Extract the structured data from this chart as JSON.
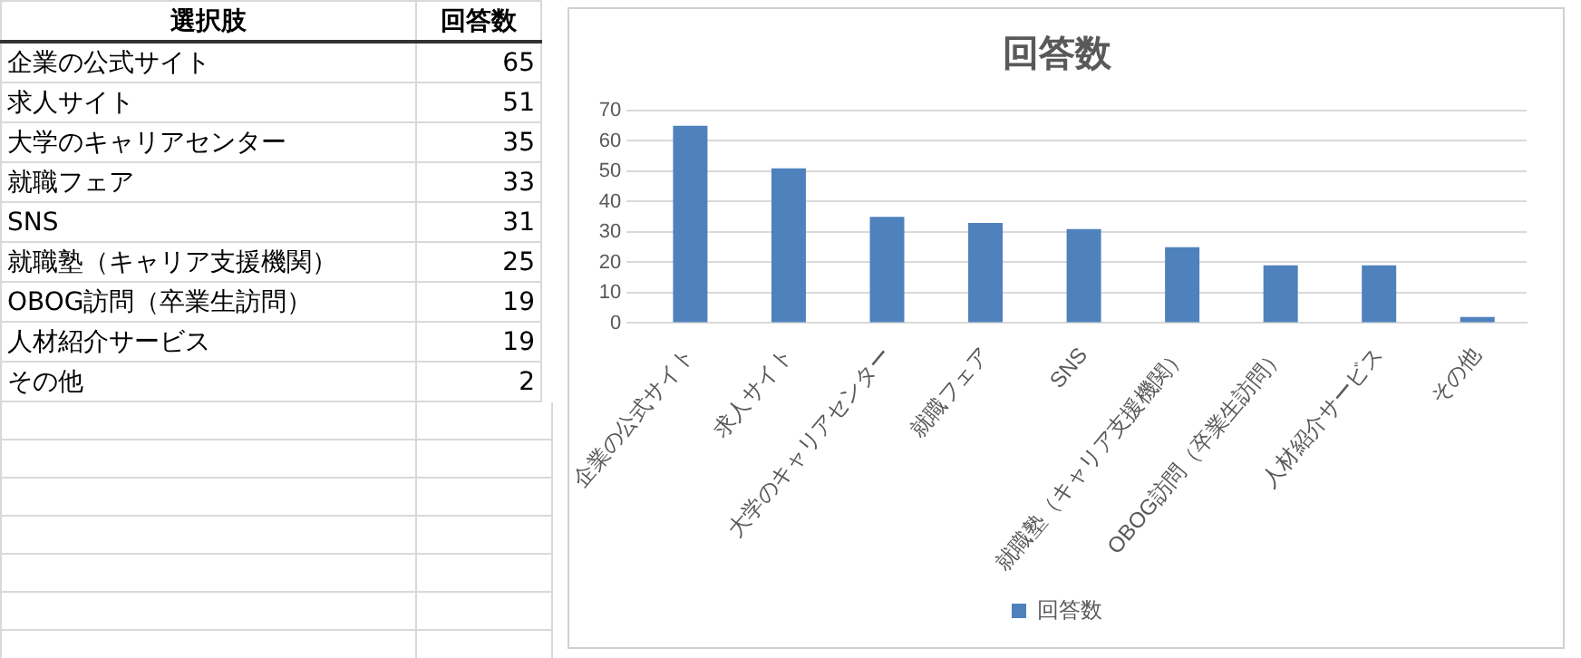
{
  "chart_data": [
    {
      "type": "other",
      "annotations": [
        "選択肢",
        "回答数",
        "企業の公式サイト",
        "65",
        "求人サイト",
        "51",
        "大学のキャリアセンター",
        "35",
        "就職フェア",
        "33",
        "SNS",
        "31",
        "就職塾（キャリア支援機関）",
        "25",
        "OBOG訪問（卒業生訪問）",
        "19",
        "人材紹介サービス",
        "19",
        "その他",
        "2"
      ]
    },
    {
      "type": "bar",
      "title": "回答数",
      "categories": [
        "企業の公式サイト",
        "求人サイト",
        "大学のキャリアセンター",
        "就職フェア",
        "SNS",
        "就職塾（キャリア支援機関）",
        "OBOG訪問（卒業生訪問）",
        "人材紹介サービス",
        "その他"
      ],
      "series": [
        {
          "name": "回答数",
          "color": "#4f81bd",
          "values": [
            65,
            51,
            35,
            33,
            31,
            25,
            19,
            19,
            2
          ]
        }
      ],
      "ylim": [
        0,
        70
      ],
      "yticks": [
        0,
        10,
        20,
        30,
        40,
        50,
        60,
        70
      ],
      "grid": "y",
      "legend": "bottom"
    }
  ]
}
